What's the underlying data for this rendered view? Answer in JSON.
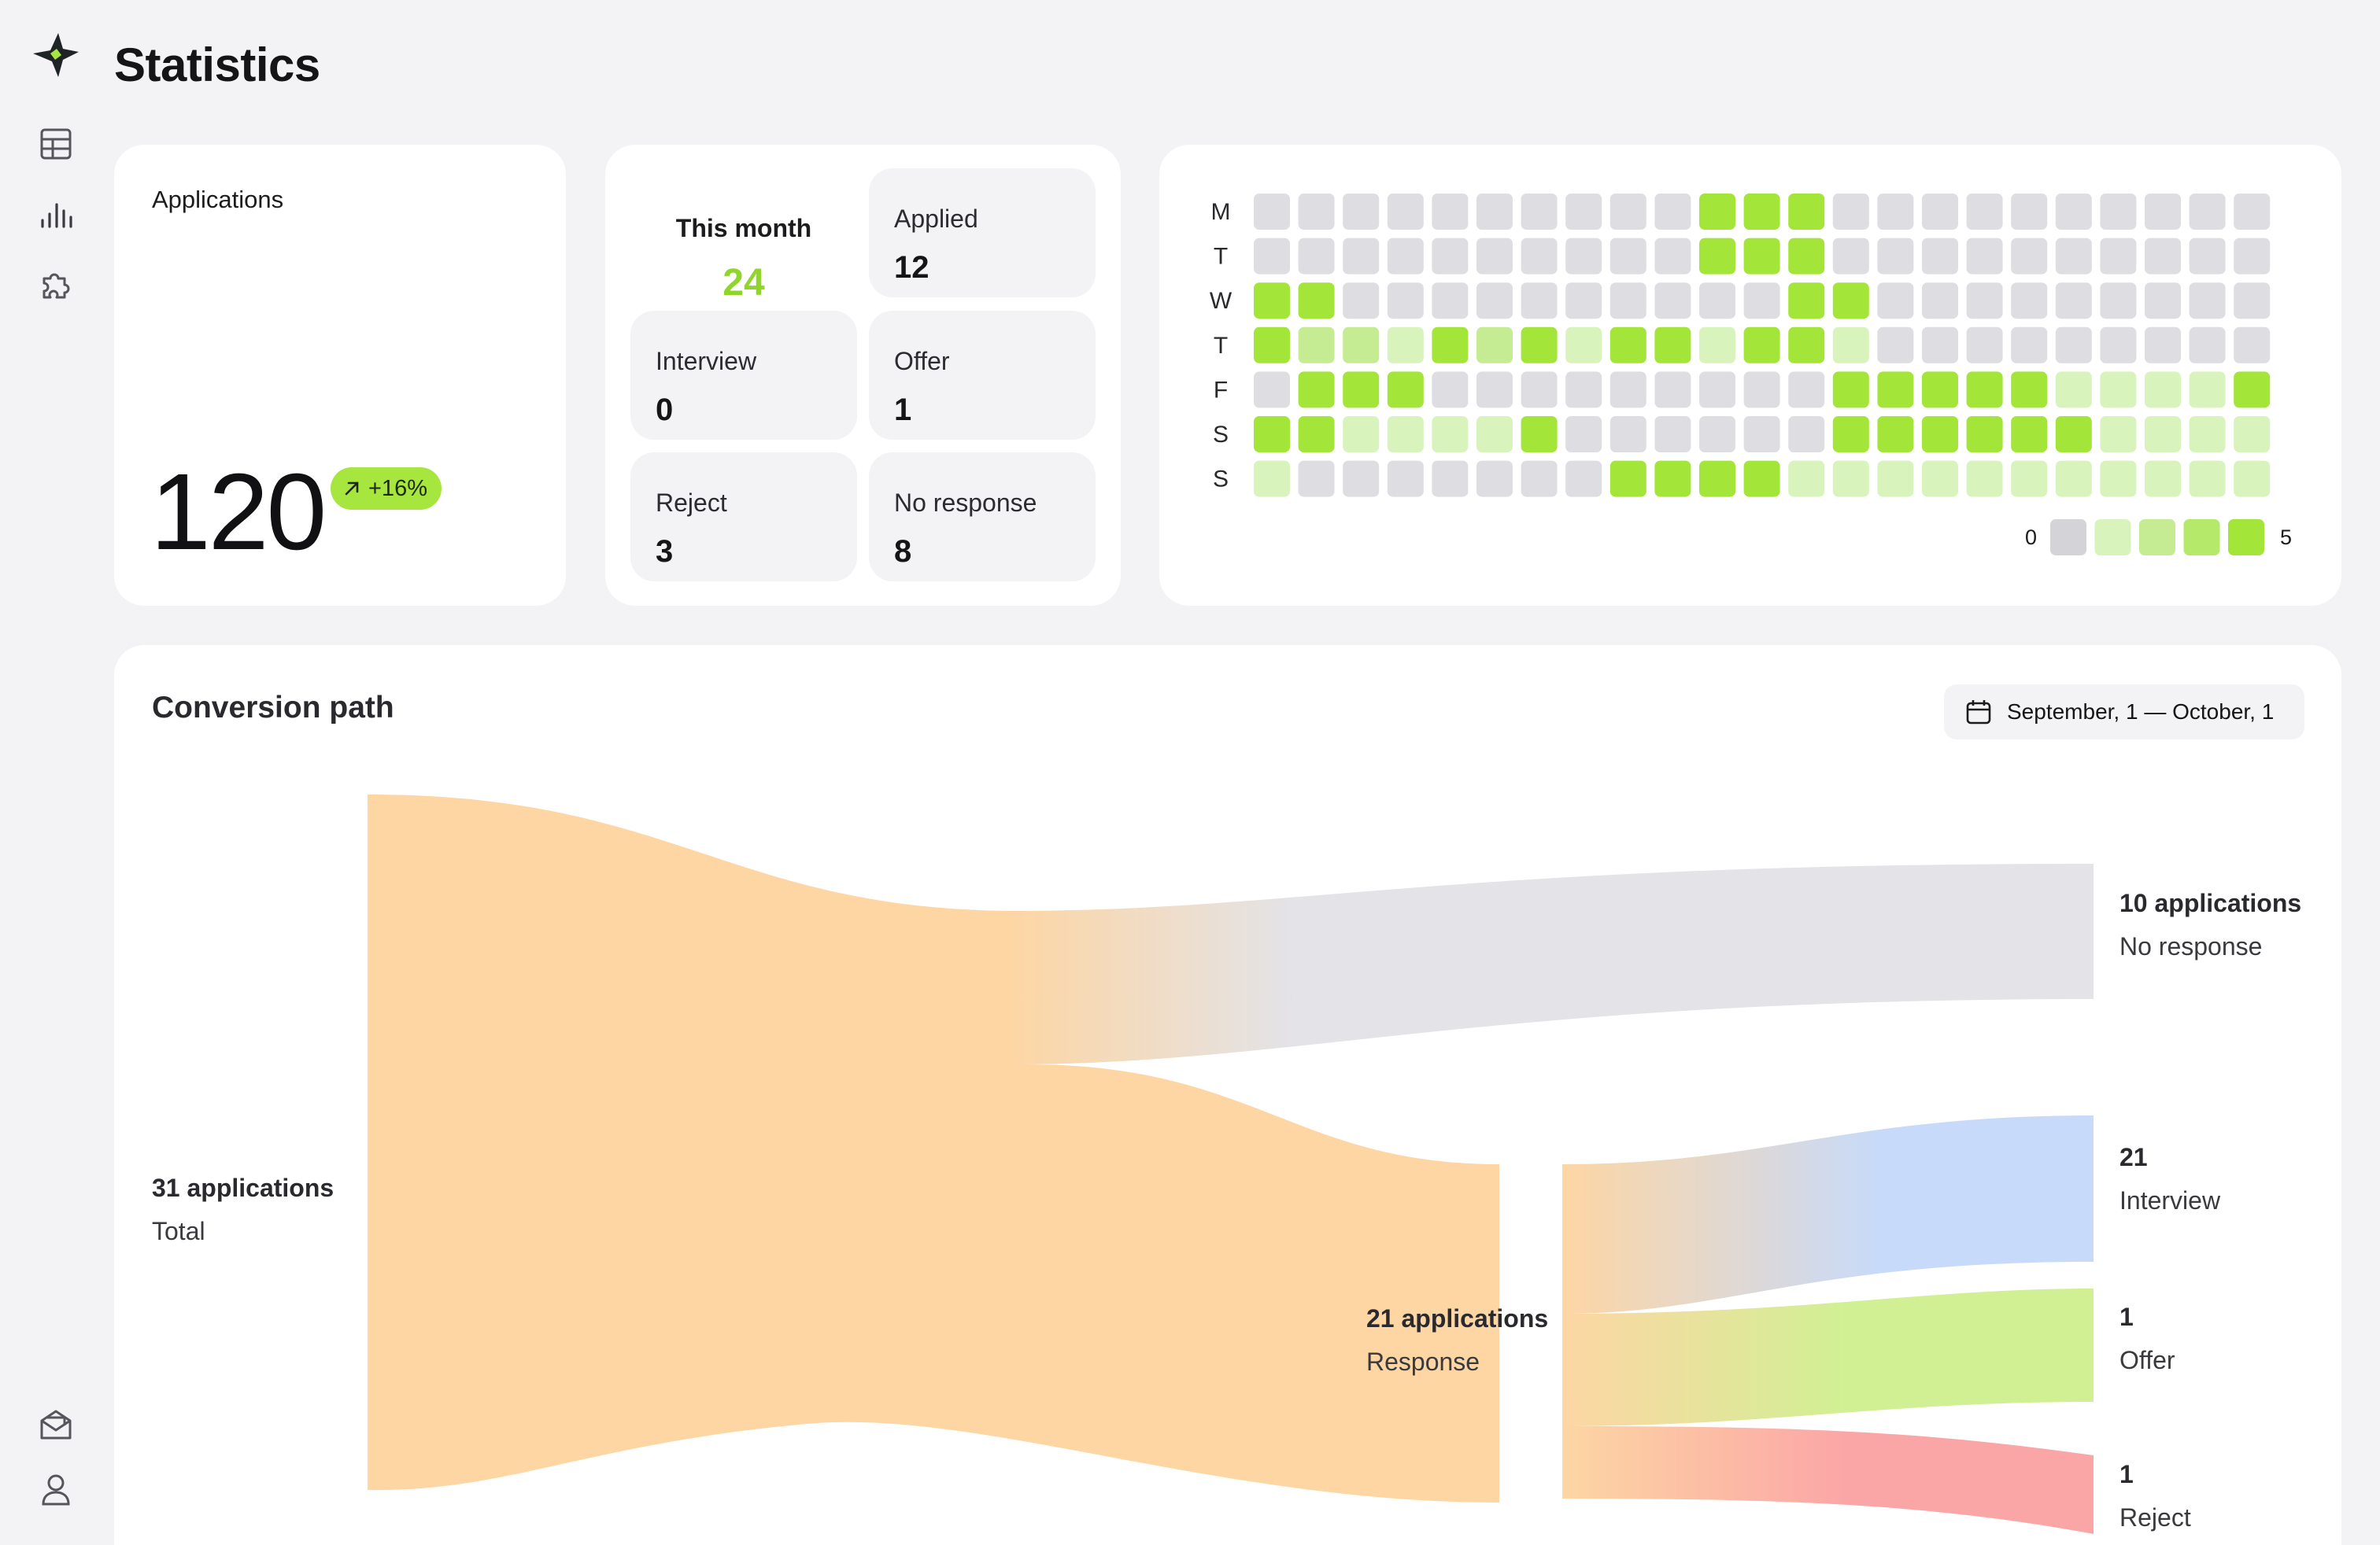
{
  "page": {
    "title": "Statistics"
  },
  "sidebar": {
    "items": [
      {
        "name": "table"
      },
      {
        "name": "statistics"
      },
      {
        "name": "extensions"
      }
    ],
    "bottom_items": [
      {
        "name": "inbox"
      },
      {
        "name": "profile"
      }
    ]
  },
  "applications": {
    "label": "Applications",
    "total": "120",
    "trend": "+16%",
    "trend_color": "#a6e63f"
  },
  "month": {
    "this_month_label": "This month",
    "this_month_value": "24",
    "cells": [
      {
        "label": "Applied",
        "value": "12"
      },
      {
        "label": "Interview",
        "value": "0"
      },
      {
        "label": "Offer",
        "value": "1"
      },
      {
        "label": "Reject",
        "value": "3"
      },
      {
        "label": "No response",
        "value": "8"
      }
    ]
  },
  "heatmap": {
    "row_labels": [
      "M",
      "T",
      "W",
      "T",
      "F",
      "S",
      "S"
    ],
    "legend_min": "0",
    "legend_max": "5",
    "colors": [
      "#dedee2",
      "#d9f3bd",
      "#c5ec93",
      "#b5e96a",
      "#a3e538"
    ],
    "cells": [
      [
        0,
        0,
        0,
        0,
        0,
        0,
        0,
        0,
        0,
        0,
        4,
        4,
        4,
        0,
        0,
        0,
        0,
        0,
        0,
        0,
        0,
        0,
        0
      ],
      [
        0,
        0,
        0,
        0,
        0,
        0,
        0,
        0,
        0,
        0,
        4,
        4,
        4,
        0,
        0,
        0,
        0,
        0,
        0,
        0,
        0,
        0,
        0
      ],
      [
        4,
        4,
        0,
        0,
        0,
        0,
        0,
        0,
        0,
        0,
        0,
        0,
        4,
        4,
        0,
        0,
        0,
        0,
        0,
        0,
        0,
        0,
        0
      ],
      [
        4,
        2,
        2,
        1,
        4,
        2,
        4,
        1,
        4,
        4,
        1,
        4,
        4,
        1,
        0,
        0,
        0,
        0,
        0,
        0,
        0,
        0,
        0
      ],
      [
        0,
        4,
        4,
        4,
        0,
        0,
        0,
        0,
        0,
        0,
        0,
        0,
        0,
        4,
        4,
        4,
        4,
        4,
        1,
        1,
        1,
        1,
        4
      ],
      [
        4,
        4,
        1,
        1,
        1,
        1,
        4,
        0,
        0,
        0,
        0,
        0,
        0,
        4,
        4,
        4,
        4,
        4,
        4,
        1,
        1,
        1,
        1
      ],
      [
        1,
        0,
        0,
        0,
        0,
        0,
        0,
        0,
        4,
        4,
        4,
        4,
        1,
        1,
        1,
        1,
        1,
        1,
        1,
        1,
        1,
        1,
        1
      ]
    ]
  },
  "conversion": {
    "title": "Conversion path",
    "date_range": "September, 1 — October, 1",
    "colors": {
      "total": "#fdd6a4",
      "no_response": "#e3e3e8",
      "interview": "#c8daf9",
      "offer": "#d1f094",
      "reject": "#fba6a6"
    },
    "nodes": {
      "total": {
        "count": "31 applications",
        "name": "Total"
      },
      "response": {
        "count": "21 applications",
        "name": "Response"
      },
      "no_response": {
        "count": "10 applications",
        "name": "No response"
      },
      "interview": {
        "count": "21",
        "name": "Interview"
      },
      "offer": {
        "count": "1",
        "name": "Offer"
      },
      "reject": {
        "count": "1",
        "name": "Reject"
      }
    }
  }
}
